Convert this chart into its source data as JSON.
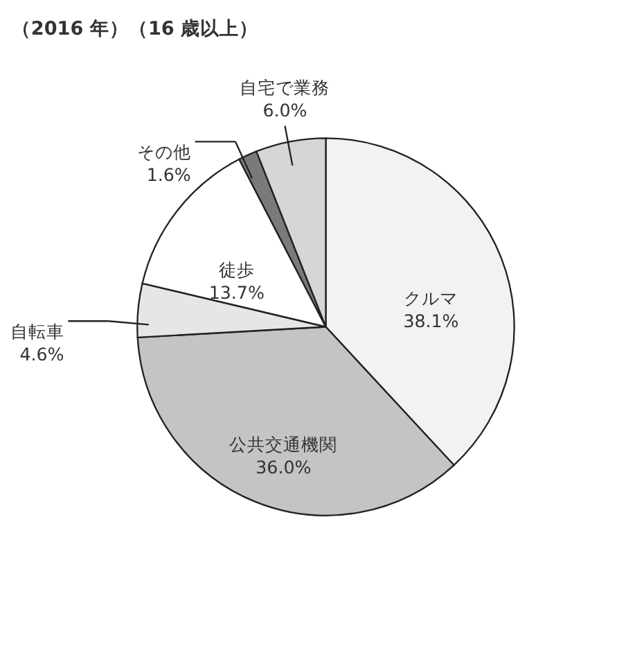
{
  "chart_data": {
    "type": "pie",
    "title": "（2016 年）（16 歳以上）",
    "categories": [
      "クルマ",
      "公共交通機関",
      "自転車",
      "徒歩",
      "その他",
      "自宅で業務"
    ],
    "values": [
      38.1,
      36.0,
      4.6,
      13.7,
      1.6,
      6.0
    ],
    "value_labels": [
      "38.1%",
      "36.0%",
      "4.6%",
      "13.7%",
      "1.6%",
      "6.0%"
    ],
    "colors": [
      "#f2f2f2",
      "#c4c4c4",
      "#e6e6e6",
      "#ffffff",
      "#7a7a7a",
      "#d6d6d6"
    ]
  }
}
